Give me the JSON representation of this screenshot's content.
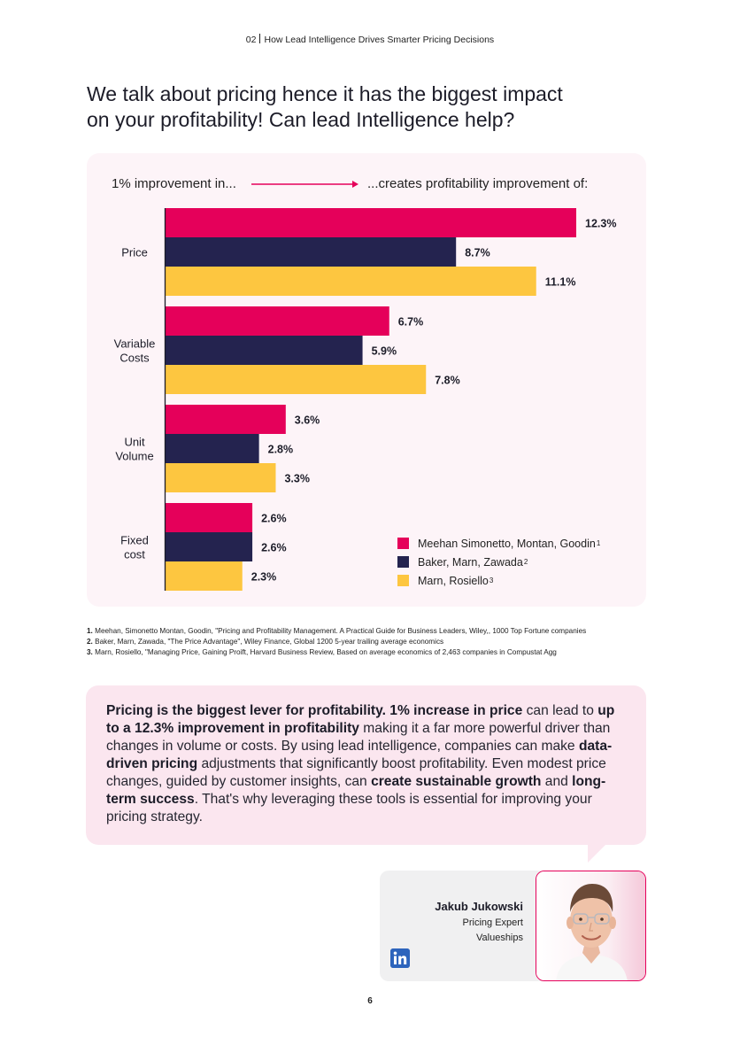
{
  "header": {
    "section_number": "02",
    "section_title": "How Lead Intelligence Drives Smarter Pricing Decisions"
  },
  "headline": {
    "line1": "We talk about pricing hence it has the biggest impact",
    "line2": "on your profitability! Can lead Intelligence help?"
  },
  "flow": {
    "left_text": "1% improvement in...",
    "right_text": "...creates profitability improvement of:"
  },
  "chart_data": {
    "type": "bar",
    "orientation": "horizontal",
    "categories": [
      [
        "Price"
      ],
      [
        "Variable",
        "Costs"
      ],
      [
        "Unit",
        "Volume"
      ],
      [
        "Fixed",
        "cost"
      ]
    ],
    "series": [
      {
        "name": "Meehan Simonetto, Montan, Goodin",
        "sup": "1",
        "color": "#e5005a",
        "values": [
          12.3,
          6.7,
          3.6,
          2.6
        ]
      },
      {
        "name": "Baker, Marn, Zawada",
        "sup": "2",
        "color": "#24234f",
        "values": [
          8.7,
          5.9,
          2.8,
          2.6
        ]
      },
      {
        "name": "Marn, Rosiello",
        "sup": "3",
        "color": "#fdc640",
        "values": [
          11.1,
          7.8,
          3.3,
          2.3
        ]
      }
    ],
    "value_suffix": "%",
    "xlim": [
      0,
      12.3
    ],
    "legend_position": "bottom-right",
    "grid": false
  },
  "footnotes": [
    {
      "number": "1.",
      "text": "Meehan, Simonetto Montan, Goodin, \"Pricing and Profitability Management. A Practical Guide for Business Leaders, Wiley,, 1000 Top Fortune companies"
    },
    {
      "number": "2.",
      "text": "Baker, Marn, Zawada, \"The Price Advantage\", Wiley Finance, Global 1200 5-year trailing average economics"
    },
    {
      "number": "3.",
      "text": "Marn, Rosiello, \"Managing Price, Gaining Proift, Harvard Business Review, Based on average economics of 2,463 companies in Compustat Agg"
    }
  ],
  "quote": {
    "p1_bold": "Pricing is the biggest lever for profitability. 1% increase in price",
    "p2": " can lead to ",
    "p3_bold": "up to a 12.3% improvement in profitability",
    "p4": " making it a far more powerful driver than changes in volume or costs. By using lead intelligence, companies can make ",
    "p5_bold": "data-driven pricing",
    "p6": " adjustments that significantly boost profitability. Even modest price changes, guided by customer insights, can ",
    "p7_bold": "create sustainable growth",
    "p8": " and ",
    "p9_bold": "long-term success",
    "p10": ". That's why leveraging these tools is essential for improving your pricing strategy."
  },
  "author": {
    "name": "Jakub Jukowski",
    "role": "Pricing Expert",
    "company": "Valueships",
    "linkedin_icon": "in"
  },
  "page_number": "6"
}
